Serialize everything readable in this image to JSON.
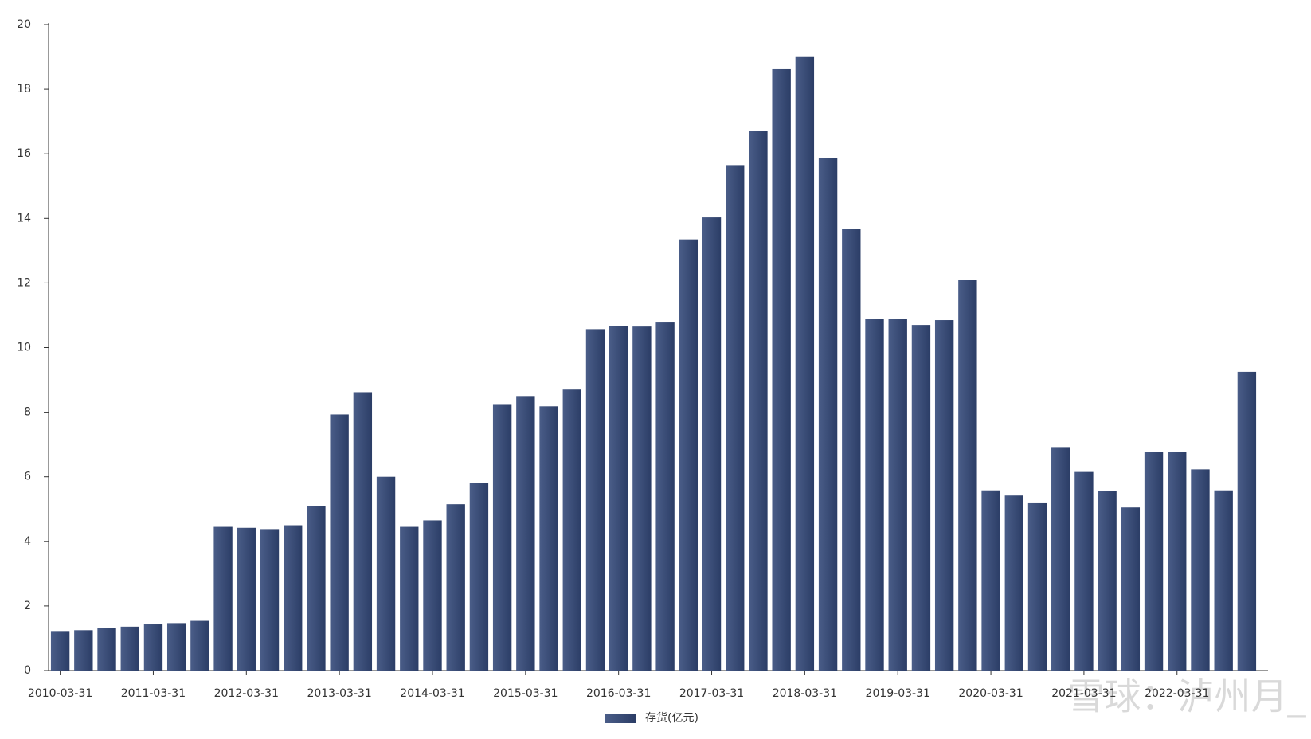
{
  "chart_data": {
    "type": "bar",
    "categories": [
      "2010-03-31",
      null,
      null,
      null,
      "2011-03-31",
      null,
      null,
      null,
      "2012-03-31",
      null,
      null,
      null,
      "2013-03-31",
      null,
      null,
      null,
      "2014-03-31",
      null,
      null,
      null,
      "2015-03-31",
      null,
      null,
      null,
      "2016-03-31",
      null,
      null,
      null,
      "2017-03-31",
      null,
      null,
      null,
      "2018-03-31",
      null,
      null,
      null,
      "2019-03-31",
      null,
      null,
      null,
      "2020-03-31",
      null,
      null,
      null,
      "2021-03-31",
      null,
      null,
      null,
      "2022-03-31",
      null,
      null,
      null
    ],
    "series": [
      {
        "name": "存货(亿元)",
        "color": "#2b3d66",
        "values": [
          1.2,
          1.25,
          1.32,
          1.36,
          1.43,
          1.47,
          1.54,
          4.45,
          4.42,
          4.38,
          4.5,
          5.1,
          7.93,
          8.62,
          6.0,
          4.45,
          4.65,
          5.15,
          5.8,
          8.25,
          8.5,
          8.18,
          8.7,
          10.57,
          10.67,
          10.65,
          10.8,
          13.35,
          14.03,
          15.65,
          16.72,
          18.62,
          19.02,
          15.87,
          13.68,
          10.88,
          10.9,
          10.7,
          10.85,
          12.1,
          5.58,
          5.42,
          5.18,
          6.92,
          6.15,
          5.55,
          5.05,
          6.78,
          6.78,
          6.23,
          5.58,
          9.25
        ]
      }
    ],
    "ylim": [
      0,
      20
    ],
    "yticks": [
      0,
      2,
      4,
      6,
      8,
      10,
      12,
      14,
      16,
      18,
      20
    ],
    "grid": false,
    "legend": "bottom",
    "annotations": [
      "雪球：泸州月_"
    ]
  }
}
